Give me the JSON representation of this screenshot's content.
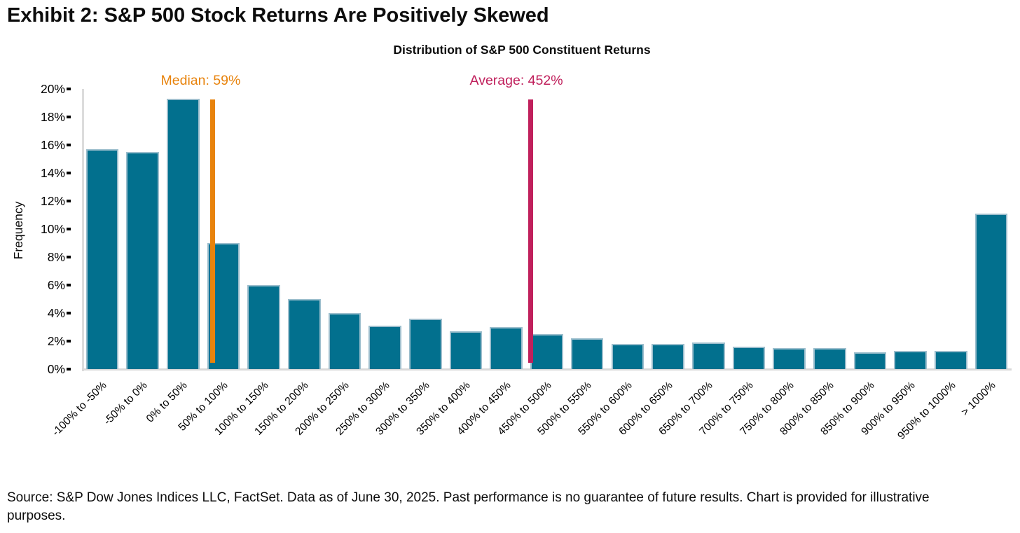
{
  "exhibit_title": "Exhibit 2: S&P 500 Stock Returns Are Positively Skewed",
  "source_note": "Source: S&P Dow Jones Indices LLC, FactSet. Data as of June 30, 2025. Past performance is no guarantee of future results. Chart is provided for illustrative purposes.",
  "colors": {
    "bar": "#02708E",
    "bar_border": "#9cbecd",
    "median": "#E8830C",
    "average": "#C0205C",
    "axis": "#d9d9d9"
  },
  "chart_data": {
    "type": "bar",
    "title": "Distribution of S&P 500 Constituent Returns",
    "xlabel": "",
    "ylabel": "Frequency",
    "categories": [
      "-100% to -50%",
      "-50% to 0%",
      "0% to 50%",
      "50% to 100%",
      "100% to 150%",
      "150% to 200%",
      "200% to 250%",
      "250% to 300%",
      "300% to 350%",
      "350% to 400%",
      "400% to 450%",
      "450% to 500%",
      "500% to 550%",
      "550% to 600%",
      "600% to 650%",
      "650% to 700%",
      "700% to 750%",
      "750% to 800%",
      "800% to 850%",
      "850% to 900%",
      "900% to 950%",
      "950% to 1000%",
      "> 1000%"
    ],
    "values": [
      15.7,
      15.5,
      19.3,
      9.0,
      6.0,
      5.0,
      4.0,
      3.1,
      3.6,
      2.7,
      3.0,
      2.5,
      2.2,
      1.8,
      1.8,
      1.9,
      1.6,
      1.5,
      1.5,
      1.2,
      1.3,
      1.3,
      11.1
    ],
    "ylim": [
      0,
      20
    ],
    "ytick_labels": [
      "0%",
      "2%",
      "4%",
      "6%",
      "8%",
      "10%",
      "12%",
      "14%",
      "16%",
      "18%",
      "20%"
    ],
    "grid": false,
    "legend": "none",
    "bin_width_pct": 50,
    "x_start_pct": -100,
    "annotations": [
      {
        "name": "median-line",
        "label": "Median: 59%",
        "value": 59,
        "color": "#E8830C"
      },
      {
        "name": "average-line",
        "label": "Average: 452%",
        "value": 452,
        "color": "#C0205C"
      }
    ]
  }
}
